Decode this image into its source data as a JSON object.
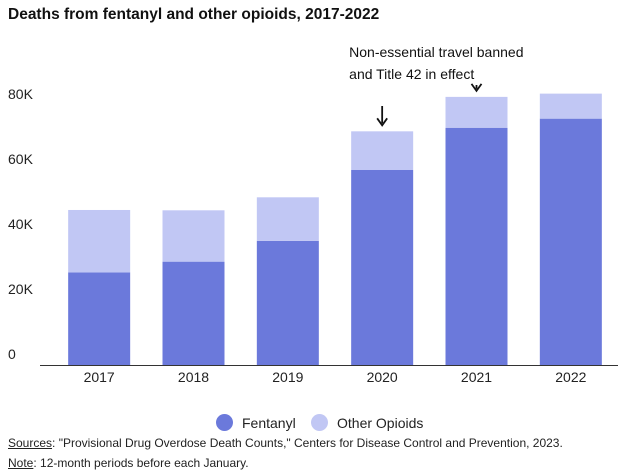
{
  "chart_data": {
    "type": "bar",
    "stacked": true,
    "title": "Deaths from fentanyl and other opioids, 2017-2022",
    "categories": [
      "2017",
      "2018",
      "2019",
      "2020",
      "2021",
      "2022"
    ],
    "series": [
      {
        "name": "Fentanyl",
        "color": "#6b79db",
        "values": [
          28500,
          31800,
          38200,
          60000,
          73000,
          75800
        ]
      },
      {
        "name": "Other Opioids",
        "color": "#c1c7f4",
        "values": [
          19200,
          15800,
          13400,
          11900,
          9500,
          7700
        ]
      }
    ],
    "ylim": [
      0,
      80000
    ],
    "yticks": [
      0,
      20000,
      40000,
      60000,
      80000
    ],
    "ytick_labels": [
      "0",
      "20K",
      "40K",
      "60K",
      "80K"
    ],
    "xlabel": "",
    "ylabel": "",
    "legend_position": "bottom",
    "annotations": [
      {
        "category": "2020",
        "lines": [
          "Non-essential travel banned",
          "and Title 42 in effect"
        ]
      },
      {
        "category": "2021"
      }
    ]
  },
  "legend": {
    "items": [
      {
        "label": "Fentanyl",
        "color": "#6b79db"
      },
      {
        "label": "Other Opioids",
        "color": "#c1c7f4"
      }
    ]
  },
  "footer": {
    "sources_label": "Sources",
    "sources_text": ": \"Provisional Drug Overdose Death Counts,\" Centers for Disease Control and Prevention, 2023.",
    "note_label": "Note",
    "note_text": ": 12-month periods before each January."
  }
}
